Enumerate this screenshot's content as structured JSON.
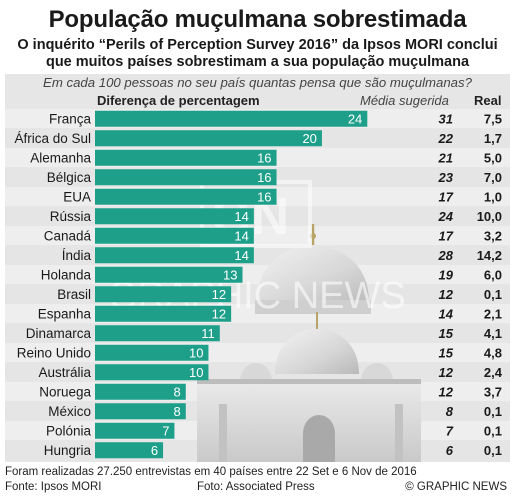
{
  "title": "População muçulmana sobrestimada",
  "subtitle": "O inquérito “Perils of Perception Survey 2016” da Ipsos MORI conclui que muitos países sobrestimam a sua população muçulmana",
  "colors": {
    "bar": "#1d9f8a",
    "bar_text": "#ffffff",
    "panel": "#e6e6e6"
  },
  "chart_data": {
    "type": "bar",
    "question": "Em cada 100 pessoas no seu país quantas pensa que são muçulmanas?",
    "headers": {
      "difference": "Diferença de percentagem",
      "suggested": "Média sugerida",
      "real": "Real"
    },
    "xlim": [
      0,
      26
    ],
    "rows": [
      {
        "country": "França",
        "difference": 24,
        "suggested": "31",
        "real": "7,5"
      },
      {
        "country": "África do Sul",
        "difference": 20,
        "suggested": "22",
        "real": "1,7"
      },
      {
        "country": "Alemanha",
        "difference": 16,
        "suggested": "21",
        "real": "5,0"
      },
      {
        "country": "Bélgica",
        "difference": 16,
        "suggested": "23",
        "real": "7,0"
      },
      {
        "country": "EUA",
        "difference": 16,
        "suggested": "17",
        "real": "1,0"
      },
      {
        "country": "Rússia",
        "difference": 14,
        "suggested": "24",
        "real": "10,0"
      },
      {
        "country": "Canadá",
        "difference": 14,
        "suggested": "17",
        "real": "3,2"
      },
      {
        "country": "Índia",
        "difference": 14,
        "suggested": "28",
        "real": "14,2"
      },
      {
        "country": "Holanda",
        "difference": 13,
        "suggested": "19",
        "real": "6,0"
      },
      {
        "country": "Brasil",
        "difference": 12,
        "suggested": "12",
        "real": "0,1"
      },
      {
        "country": "Espanha",
        "difference": 12,
        "suggested": "14",
        "real": "2,1"
      },
      {
        "country": "Dinamarca",
        "difference": 11,
        "suggested": "15",
        "real": "4,1"
      },
      {
        "country": "Reino Unido",
        "difference": 10,
        "suggested": "15",
        "real": "4,8"
      },
      {
        "country": "Austrália",
        "difference": 10,
        "suggested": "12",
        "real": "2,4"
      },
      {
        "country": "Noruega",
        "difference": 8,
        "suggested": "12",
        "real": "3,7"
      },
      {
        "country": "México",
        "difference": 8,
        "suggested": "8",
        "real": "0,1"
      },
      {
        "country": "Polónia",
        "difference": 7,
        "suggested": "7",
        "real": "0,1"
      },
      {
        "country": "Hungria",
        "difference": 6,
        "suggested": "6",
        "real": "0,1"
      }
    ]
  },
  "watermark": "GRAPHIC NEWS",
  "footer": {
    "note": "Foram realizadas 27.250 entrevistas em 40 países entre 22 Set e 6 Nov de 2016",
    "source": "Fonte: Ipsos MORI",
    "photo": "Foto: Associated Press",
    "brand": "© GRAPHIC NEWS"
  }
}
